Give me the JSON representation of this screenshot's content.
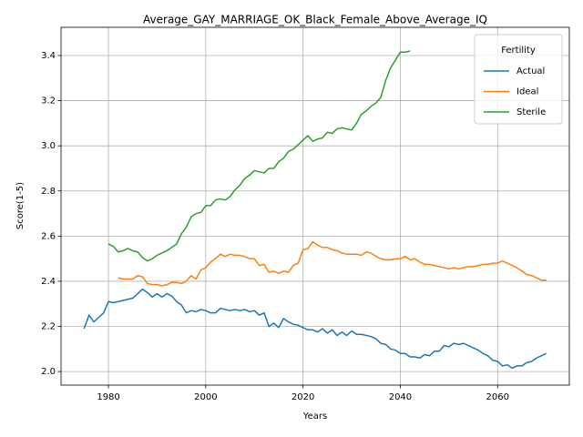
{
  "chart_data": {
    "type": "line",
    "title": "Average_GAY_MARRIAGE_OK_Black_Female_Above_Average_IQ",
    "x_label": "Years",
    "y_label": "Score(1-5)",
    "xlim": [
      1970.25,
      2074.75
    ],
    "ylim": [
      1.94,
      3.525
    ],
    "xticks": [
      1980,
      2000,
      2020,
      2040,
      2060
    ],
    "yticks": [
      {
        "value": 2,
        "label": "2.0"
      },
      2.2,
      2.4,
      2.6,
      2.8,
      {
        "value": 3,
        "label": "3.0"
      },
      3.2,
      3.4
    ],
    "grid": true,
    "legend_title": "Fertility",
    "legend_position": "upper right",
    "series": [
      {
        "name": "Actual",
        "color": "#1f77b4",
        "x": [
          1975,
          1976,
          1977,
          1978,
          1979,
          1980,
          1981,
          1982,
          1983,
          1984,
          1985,
          1986,
          1987,
          1988,
          1989,
          1990,
          1991,
          1992,
          1993,
          1994,
          1995,
          1996,
          1997,
          1998,
          1999,
          2000,
          2001,
          2002,
          2003,
          2004,
          2005,
          2006,
          2007,
          2008,
          2009,
          2010,
          2011,
          2012,
          2013,
          2014,
          2015,
          2016,
          2017,
          2018,
          2019,
          2020,
          2021,
          2022,
          2023,
          2024,
          2025,
          2026,
          2027,
          2028,
          2029,
          2030,
          2031,
          2032,
          2033,
          2034,
          2035,
          2036,
          2037,
          2038,
          2039,
          2040,
          2041,
          2042,
          2043,
          2044,
          2045,
          2046,
          2047,
          2048,
          2049,
          2050,
          2051,
          2052,
          2053,
          2054,
          2055,
          2056,
          2057,
          2058,
          2059,
          2060,
          2061,
          2062,
          2063,
          2064,
          2065,
          2066,
          2067,
          2068,
          2069,
          2070
        ],
        "values": [
          2.19,
          2.25,
          2.22,
          2.24,
          2.26,
          2.31,
          2.305,
          2.31,
          2.315,
          2.32,
          2.325,
          2.345,
          2.365,
          2.35,
          2.33,
          2.345,
          2.33,
          2.345,
          2.335,
          2.31,
          2.295,
          2.26,
          2.27,
          2.265,
          2.275,
          2.27,
          2.26,
          2.26,
          2.28,
          2.275,
          2.27,
          2.275,
          2.27,
          2.275,
          2.265,
          2.27,
          2.25,
          2.26,
          2.2,
          2.215,
          2.195,
          2.235,
          2.22,
          2.21,
          2.205,
          2.195,
          2.185,
          2.185,
          2.175,
          2.19,
          2.17,
          2.185,
          2.16,
          2.175,
          2.16,
          2.18,
          2.165,
          2.165,
          2.16,
          2.155,
          2.145,
          2.125,
          2.12,
          2.1,
          2.095,
          2.08,
          2.08,
          2.065,
          2.065,
          2.06,
          2.075,
          2.07,
          2.09,
          2.09,
          2.115,
          2.11,
          2.125,
          2.12,
          2.125,
          2.115,
          2.105,
          2.095,
          2.08,
          2.07,
          2.05,
          2.045,
          2.025,
          2.03,
          2.015,
          2.025,
          2.025,
          2.04,
          2.045,
          2.06,
          2.07,
          2.08
        ]
      },
      {
        "name": "Ideal",
        "color": "#ff7f0e",
        "x": [
          1982,
          1983,
          1984,
          1985,
          1986,
          1987,
          1988,
          1989,
          1990,
          1991,
          1992,
          1993,
          1994,
          1995,
          1996,
          1997,
          1998,
          1999,
          2000,
          2001,
          2002,
          2003,
          2004,
          2005,
          2006,
          2007,
          2008,
          2009,
          2010,
          2011,
          2012,
          2013,
          2014,
          2015,
          2016,
          2017,
          2018,
          2019,
          2020,
          2021,
          2022,
          2023,
          2024,
          2025,
          2026,
          2027,
          2028,
          2029,
          2030,
          2031,
          2032,
          2033,
          2034,
          2035,
          2036,
          2037,
          2038,
          2039,
          2040,
          2041,
          2042,
          2043,
          2044,
          2045,
          2046,
          2047,
          2048,
          2049,
          2050,
          2051,
          2052,
          2053,
          2054,
          2055,
          2056,
          2057,
          2058,
          2059,
          2060,
          2061,
          2062,
          2063,
          2064,
          2065,
          2066,
          2067,
          2068,
          2069,
          2070
        ],
        "values": [
          2.415,
          2.41,
          2.41,
          2.41,
          2.425,
          2.42,
          2.39,
          2.385,
          2.385,
          2.38,
          2.385,
          2.395,
          2.395,
          2.39,
          2.4,
          2.425,
          2.41,
          2.45,
          2.46,
          2.485,
          2.5,
          2.52,
          2.51,
          2.52,
          2.515,
          2.515,
          2.51,
          2.5,
          2.5,
          2.47,
          2.475,
          2.44,
          2.445,
          2.435,
          2.445,
          2.44,
          2.47,
          2.48,
          2.54,
          2.545,
          2.575,
          2.56,
          2.55,
          2.55,
          2.54,
          2.535,
          2.525,
          2.52,
          2.52,
          2.52,
          2.515,
          2.53,
          2.525,
          2.51,
          2.5,
          2.495,
          2.495,
          2.5,
          2.5,
          2.51,
          2.495,
          2.5,
          2.485,
          2.475,
          2.475,
          2.47,
          2.465,
          2.46,
          2.455,
          2.46,
          2.455,
          2.46,
          2.465,
          2.465,
          2.47,
          2.475,
          2.475,
          2.48,
          2.48,
          2.49,
          2.48,
          2.47,
          2.46,
          2.445,
          2.43,
          2.425,
          2.415,
          2.405,
          2.405
        ]
      },
      {
        "name": "Sterile",
        "color": "#2ca02c",
        "x": [
          1980,
          1981,
          1982,
          1983,
          1984,
          1985,
          1986,
          1987,
          1988,
          1989,
          1990,
          1991,
          1992,
          1993,
          1994,
          1995,
          1996,
          1997,
          1998,
          1999,
          2000,
          2001,
          2002,
          2003,
          2004,
          2005,
          2006,
          2007,
          2008,
          2009,
          2010,
          2011,
          2012,
          2013,
          2014,
          2015,
          2016,
          2017,
          2018,
          2019,
          2020,
          2021,
          2022,
          2023,
          2024,
          2025,
          2026,
          2027,
          2028,
          2029,
          2030,
          2031,
          2032,
          2033,
          2034,
          2035,
          2036,
          2037,
          2038,
          2039,
          2040,
          2041,
          2042
        ],
        "values": [
          2.565,
          2.555,
          2.53,
          2.535,
          2.545,
          2.535,
          2.53,
          2.505,
          2.49,
          2.5,
          2.515,
          2.525,
          2.535,
          2.55,
          2.565,
          2.61,
          2.64,
          2.685,
          2.7,
          2.705,
          2.735,
          2.735,
          2.76,
          2.765,
          2.76,
          2.775,
          2.805,
          2.825,
          2.855,
          2.87,
          2.89,
          2.885,
          2.88,
          2.9,
          2.9,
          2.93,
          2.945,
          2.975,
          2.985,
          3.005,
          3.025,
          3.045,
          3.02,
          3.03,
          3.035,
          3.06,
          3.055,
          3.075,
          3.08,
          3.075,
          3.07,
          3.1,
          3.14,
          3.155,
          3.175,
          3.19,
          3.215,
          3.29,
          3.345,
          3.38,
          3.415,
          3.415,
          3.42
        ]
      }
    ]
  }
}
